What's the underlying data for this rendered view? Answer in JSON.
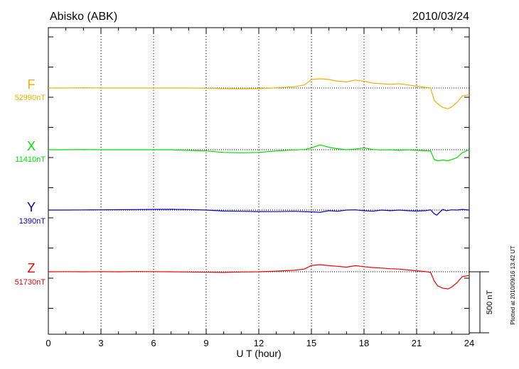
{
  "header": {
    "station": "Abisko (ABK)",
    "date": "2010/03/24"
  },
  "footer": {
    "plotted_note": "Plotted at 2010/09/16 13:42 UT"
  },
  "chart_data": {
    "type": "line",
    "xlabel": "U T (hour)",
    "xlim": [
      0,
      24
    ],
    "xticks": [
      "0",
      "3",
      "6",
      "9",
      "12",
      "15",
      "18",
      "21",
      "24"
    ],
    "grid": true,
    "scale_bar": {
      "label": "500 nT",
      "value_nT": 500
    },
    "series": [
      {
        "name": "F",
        "baseline_label": "52990nT",
        "baseline_nT": 52990,
        "color": "#f0b000",
        "x": [
          0,
          1,
          2,
          3,
          4,
          5,
          6,
          7,
          8,
          9,
          10,
          11,
          12,
          13,
          14,
          14.6,
          15,
          15.5,
          16,
          16.5,
          17,
          17.5,
          18,
          18.5,
          19,
          19.5,
          20,
          20.5,
          21,
          21.5,
          21.8,
          22,
          22.2,
          22.5,
          22.8,
          23,
          23.3,
          23.6,
          24
        ],
        "values": [
          52990,
          52990,
          52992,
          52990,
          52990,
          52990,
          52990,
          52990,
          52990,
          52988,
          52985,
          52983,
          52985,
          52992,
          53000,
          53015,
          53060,
          53065,
          53060,
          53045,
          53040,
          53055,
          53045,
          53030,
          53025,
          53020,
          53025,
          53015,
          53005,
          52995,
          52990,
          52890,
          52860,
          52830,
          52820,
          52835,
          52870,
          52925,
          52935
        ]
      },
      {
        "name": "X",
        "baseline_label": "11410nT",
        "baseline_nT": 11410,
        "color": "#00dd00",
        "x": [
          0,
          1,
          2,
          3,
          4,
          5,
          6,
          7,
          8,
          9,
          10,
          11,
          12,
          13,
          14,
          14.6,
          15,
          15.5,
          16,
          16.5,
          17,
          17.5,
          18,
          18.5,
          19,
          19.5,
          20,
          20.5,
          21,
          21.5,
          21.8,
          22,
          22.2,
          22.5,
          22.8,
          23,
          23.3,
          23.6,
          24
        ],
        "values": [
          11410,
          11410,
          11412,
          11410,
          11410,
          11410,
          11410,
          11410,
          11405,
          11400,
          11388,
          11385,
          11388,
          11400,
          11408,
          11412,
          11425,
          11450,
          11430,
          11418,
          11410,
          11415,
          11425,
          11412,
          11408,
          11410,
          11405,
          11410,
          11405,
          11402,
          11400,
          11330,
          11320,
          11325,
          11320,
          11330,
          11345,
          11385,
          11410
        ]
      },
      {
        "name": "Y",
        "baseline_label": "1390nT",
        "baseline_nT": 1390,
        "color": "#0000cc",
        "x": [
          0,
          1,
          2,
          3,
          4,
          5,
          6,
          7,
          8,
          9,
          10,
          11,
          12,
          13,
          14,
          15,
          15.5,
          16,
          16.5,
          17,
          17.5,
          18,
          18.5,
          19,
          19.5,
          20,
          20.5,
          21,
          21.5,
          21.8,
          22,
          22.15,
          22.3,
          22.5,
          22.7,
          23,
          23.3,
          23.6,
          24
        ],
        "values": [
          1390,
          1390,
          1391,
          1392,
          1393,
          1394,
          1395,
          1396,
          1394,
          1390,
          1382,
          1380,
          1378,
          1377,
          1380,
          1375,
          1372,
          1385,
          1380,
          1390,
          1392,
          1385,
          1380,
          1390,
          1385,
          1390,
          1385,
          1382,
          1385,
          1392,
          1360,
          1348,
          1370,
          1395,
          1385,
          1392,
          1390,
          1395,
          1390
        ]
      },
      {
        "name": "Z",
        "baseline_label": "51730nT",
        "baseline_nT": 51730,
        "color": "#ee0000",
        "x": [
          0,
          1,
          2,
          3,
          4,
          5,
          6,
          7,
          8,
          9,
          10,
          11,
          12,
          13,
          14,
          14.6,
          15,
          15.5,
          16,
          16.5,
          17,
          17.5,
          18,
          18.5,
          19,
          19.5,
          20,
          20.5,
          21,
          21.5,
          21.8,
          22,
          22.2,
          22.5,
          22.8,
          23,
          23.3,
          23.6,
          24
        ],
        "values": [
          51730,
          51731,
          51730,
          51731,
          51730,
          51732,
          51731,
          51730,
          51728,
          51726,
          51725,
          51728,
          51730,
          51735,
          51742,
          51752,
          51782,
          51788,
          51780,
          51775,
          51768,
          51780,
          51772,
          51765,
          51760,
          51755,
          51752,
          51745,
          51738,
          51732,
          51725,
          51655,
          51615,
          51595,
          51590,
          51605,
          51640,
          51690,
          51700
        ]
      }
    ]
  }
}
